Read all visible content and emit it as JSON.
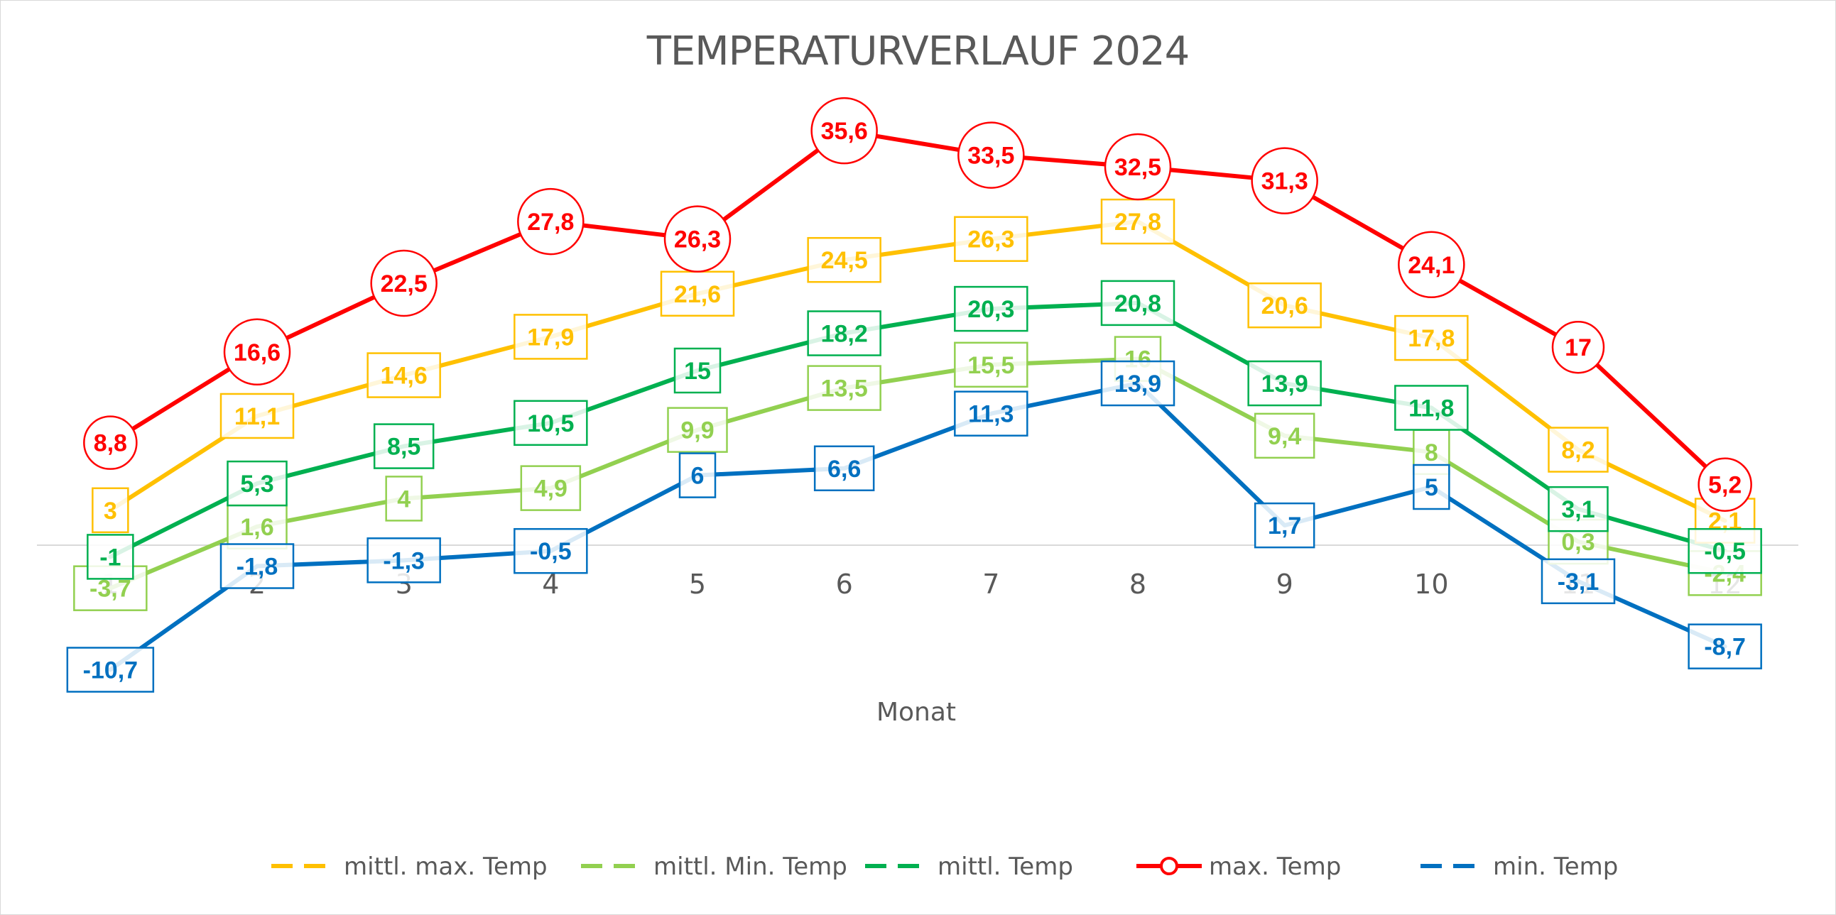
{
  "chart_data": {
    "type": "line",
    "title": "TEMPERATURVERLAUF 2024",
    "xlabel": "Monat",
    "ylabel": "",
    "categories": [
      "1",
      "2",
      "3",
      "4",
      "5",
      "6",
      "7",
      "8",
      "9",
      "10",
      "11",
      "12"
    ],
    "ylim": [
      -14,
      40
    ],
    "grid": false,
    "legend_position": "bottom",
    "series": [
      {
        "name": "mittl. max. Temp",
        "color": "#FFC000",
        "marker": "square",
        "values": [
          3,
          11.1,
          14.6,
          17.9,
          21.6,
          24.5,
          26.3,
          27.8,
          20.6,
          17.8,
          8.2,
          2.1
        ],
        "labels": [
          "3",
          "11,1",
          "14,6",
          "17,9",
          "21,6",
          "24,5",
          "26,3",
          "27,8",
          "20,6",
          "17,8",
          "8,2",
          "2,1"
        ]
      },
      {
        "name": "mittl. Min. Temp",
        "color": "#92D050",
        "marker": "square",
        "values": [
          -3.7,
          1.6,
          4,
          4.9,
          9.9,
          13.5,
          15.5,
          16,
          9.4,
          8,
          0.3,
          -2.4
        ],
        "labels": [
          "-3,7",
          "1,6",
          "4",
          "4,9",
          "9,9",
          "13,5",
          "15,5",
          "16",
          "9,4",
          "8",
          "0,3",
          "-2,4"
        ]
      },
      {
        "name": "mittl. Temp",
        "color": "#00B050",
        "marker": "square",
        "values": [
          -1,
          5.3,
          8.5,
          10.5,
          15,
          18.2,
          20.3,
          20.8,
          13.9,
          11.8,
          3.1,
          -0.5
        ],
        "labels": [
          "-1",
          "5,3",
          "8,5",
          "10,5",
          "15",
          "18,2",
          "20,3",
          "20,8",
          "13,9",
          "11,8",
          "3,1",
          "-0,5"
        ]
      },
      {
        "name": "max. Temp",
        "color": "#FF0000",
        "marker": "circle",
        "values": [
          8.8,
          16.6,
          22.5,
          27.8,
          26.3,
          35.6,
          33.5,
          32.5,
          31.3,
          24.1,
          17,
          5.2
        ],
        "labels": [
          "8,8",
          "16,6",
          "22,5",
          "27,8",
          "26,3",
          "35,6",
          "33,5",
          "32,5",
          "31,3",
          "24,1",
          "17",
          "5,2"
        ]
      },
      {
        "name": "min. Temp",
        "color": "#0070C0",
        "marker": "square",
        "values": [
          -10.7,
          -1.8,
          -1.3,
          -0.5,
          6,
          6.6,
          11.3,
          13.9,
          1.7,
          5,
          -3.1,
          -8.7
        ],
        "labels": [
          "-10,7",
          "-1,8",
          "-1,3",
          "-0,5",
          "6",
          "6,6",
          "11,3",
          "13,9",
          "1,7",
          "5",
          "-3,1",
          "-8,7"
        ]
      }
    ]
  }
}
